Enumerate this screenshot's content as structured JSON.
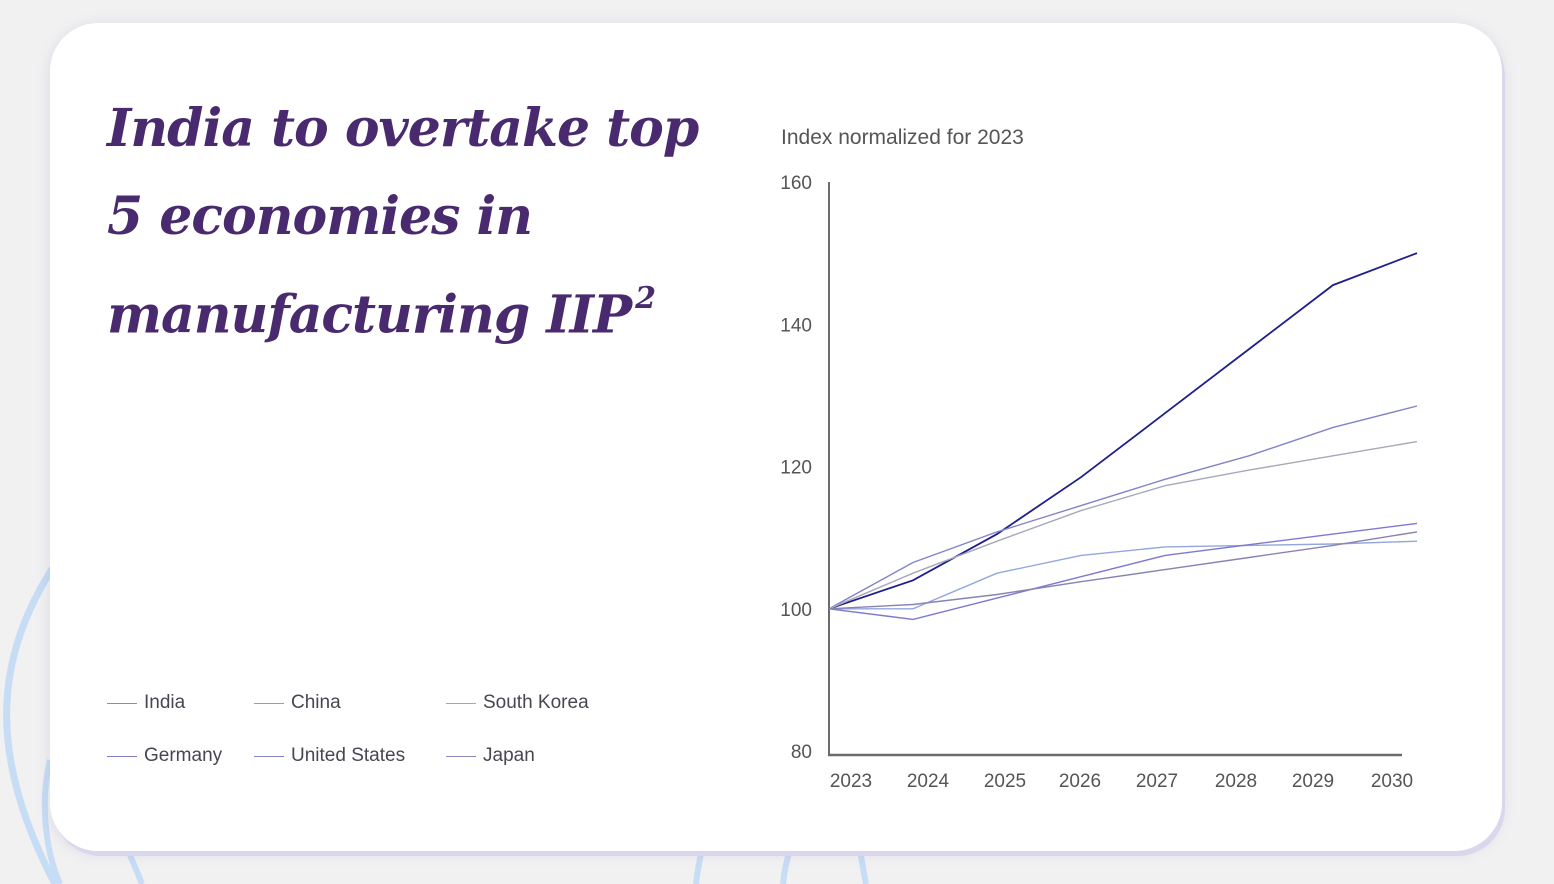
{
  "title": {
    "text": "India to overtake top 5 economies in manufacturing IIP",
    "superscript": "2"
  },
  "legend": [
    {
      "label": "India",
      "color": "#8c8fa6"
    },
    {
      "label": "China",
      "color": "#9a9db0"
    },
    {
      "label": "South Korea",
      "color": "#a7a8b6"
    },
    {
      "label": "Germany",
      "color": "#7f7fc2"
    },
    {
      "label": "United States",
      "color": "#8486c4"
    },
    {
      "label": "Japan",
      "color": "#8f89ba"
    }
  ],
  "chart_data": {
    "type": "line",
    "ylabel": "Index normalized for 2023",
    "xlabel": "",
    "x": [
      "2023",
      "2024",
      "2025",
      "2026",
      "2027",
      "2028",
      "2029",
      "2030"
    ],
    "ylim": [
      80,
      160
    ],
    "yticks": [
      80,
      100,
      120,
      140,
      160
    ],
    "grid": false,
    "series": [
      {
        "name": "India",
        "color": "#1e1f8c",
        "values": [
          100,
          104,
          110.5,
          118.5,
          127.5,
          136.5,
          145.5,
          150
        ]
      },
      {
        "name": "China",
        "color": "#8184c8",
        "values": [
          100,
          106.5,
          110.8,
          114.5,
          118.2,
          121.5,
          125.5,
          128.5
        ]
      },
      {
        "name": "South Korea",
        "color": "#a8a8b8",
        "values": [
          100,
          105,
          109.5,
          113.8,
          117.3,
          119.5,
          121.5,
          123.5
        ]
      },
      {
        "name": "Germany",
        "color": "#93a7dc",
        "values": [
          100,
          100,
          105,
          107.5,
          108.7,
          108.9,
          109.1,
          109.5
        ]
      },
      {
        "name": "United States",
        "color": "#7e79d0",
        "values": [
          100,
          98.5,
          101.5,
          104.5,
          107.5,
          109,
          110.5,
          112
        ]
      },
      {
        "name": "Japan",
        "color": "#8882b5",
        "values": [
          100,
          100.6,
          102,
          103.8,
          105.5,
          107.2,
          108.9,
          110.8
        ]
      }
    ]
  }
}
